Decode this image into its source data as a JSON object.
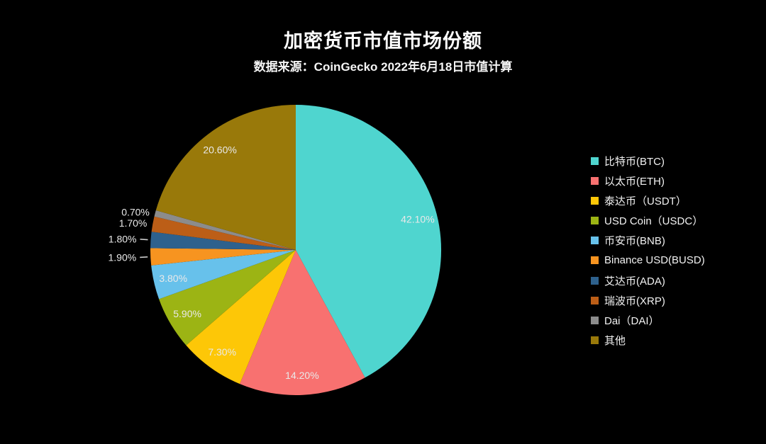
{
  "header": {
    "title": "加密货币市值市场份额",
    "subtitle": "数据来源：CoinGecko 2022年6月18日市值计算"
  },
  "chart_data": {
    "type": "pie",
    "title": "加密货币市值市场份额",
    "subtitle": "数据来源：CoinGecko 2022年6月18日市值计算",
    "unit": "%",
    "start_angle": "12-o-clock",
    "direction": "clockwise",
    "legend_position": "right",
    "background_color": "#000000",
    "label_color": "#e9e9e9",
    "leader_tick_color": "#cccccc",
    "slices": [
      {
        "label": "比特币(BTC)",
        "value": 42.1,
        "pct_label": "42.10%",
        "color": "#4fd5cf"
      },
      {
        "label": "以太币(ETH)",
        "value": 14.2,
        "pct_label": "14.20%",
        "color": "#f87170"
      },
      {
        "label": "泰达币（USDT）",
        "value": 7.3,
        "pct_label": "7.30%",
        "color": "#fdc707"
      },
      {
        "label": "USD Coin（USDC）",
        "value": 5.9,
        "pct_label": "5.90%",
        "color": "#9cb414"
      },
      {
        "label": "币安币(BNB)",
        "value": 3.8,
        "pct_label": "3.80%",
        "color": "#67c1eb"
      },
      {
        "label": "Binance USD(BUSD)",
        "value": 1.9,
        "pct_label": "1.90%",
        "color": "#f79420"
      },
      {
        "label": "艾达币(ADA)",
        "value": 1.8,
        "pct_label": "1.80%",
        "color": "#2e618d"
      },
      {
        "label": "瑞波币(XRP)",
        "value": 1.7,
        "pct_label": "1.70%",
        "color": "#bc5e17"
      },
      {
        "label": "Dai（DAI）",
        "value": 0.7,
        "pct_label": "0.70%",
        "color": "#8c8c8c"
      },
      {
        "label": "其他",
        "value": 20.6,
        "pct_label": "20.60%",
        "color": "#99790a"
      }
    ]
  }
}
